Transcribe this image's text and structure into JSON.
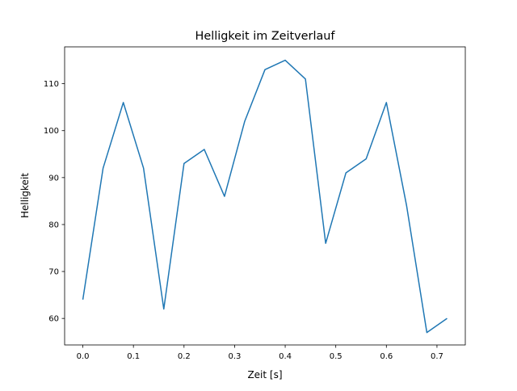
{
  "chart_data": {
    "type": "line",
    "title": "Helligkeit im Zeitverlauf",
    "xlabel": "Zeit [s]",
    "ylabel": "Helligkeit",
    "xlim": [
      -0.036,
      0.756
    ],
    "ylim": [
      54.35,
      117.85
    ],
    "xticks": [
      0.0,
      0.1,
      0.2,
      0.3,
      0.4,
      0.5,
      0.6,
      0.7
    ],
    "xtick_labels": [
      "0.0",
      "0.1",
      "0.2",
      "0.3",
      "0.4",
      "0.5",
      "0.6",
      "0.7"
    ],
    "yticks": [
      60,
      70,
      80,
      90,
      100,
      110
    ],
    "ytick_labels": [
      "60",
      "70",
      "80",
      "90",
      "100",
      "110"
    ],
    "grid": false,
    "series": [
      {
        "name": "Helligkeit",
        "color": "#1f77b4",
        "x": [
          0.0,
          0.04,
          0.08,
          0.12,
          0.16,
          0.2,
          0.24,
          0.28,
          0.32,
          0.36,
          0.4,
          0.44,
          0.48,
          0.52,
          0.56,
          0.6,
          0.64,
          0.68,
          0.72
        ],
        "y": [
          64,
          92,
          106,
          92,
          62,
          93,
          96,
          86,
          102,
          113,
          115,
          111,
          76,
          91,
          94,
          106,
          84,
          57,
          60
        ]
      }
    ]
  }
}
